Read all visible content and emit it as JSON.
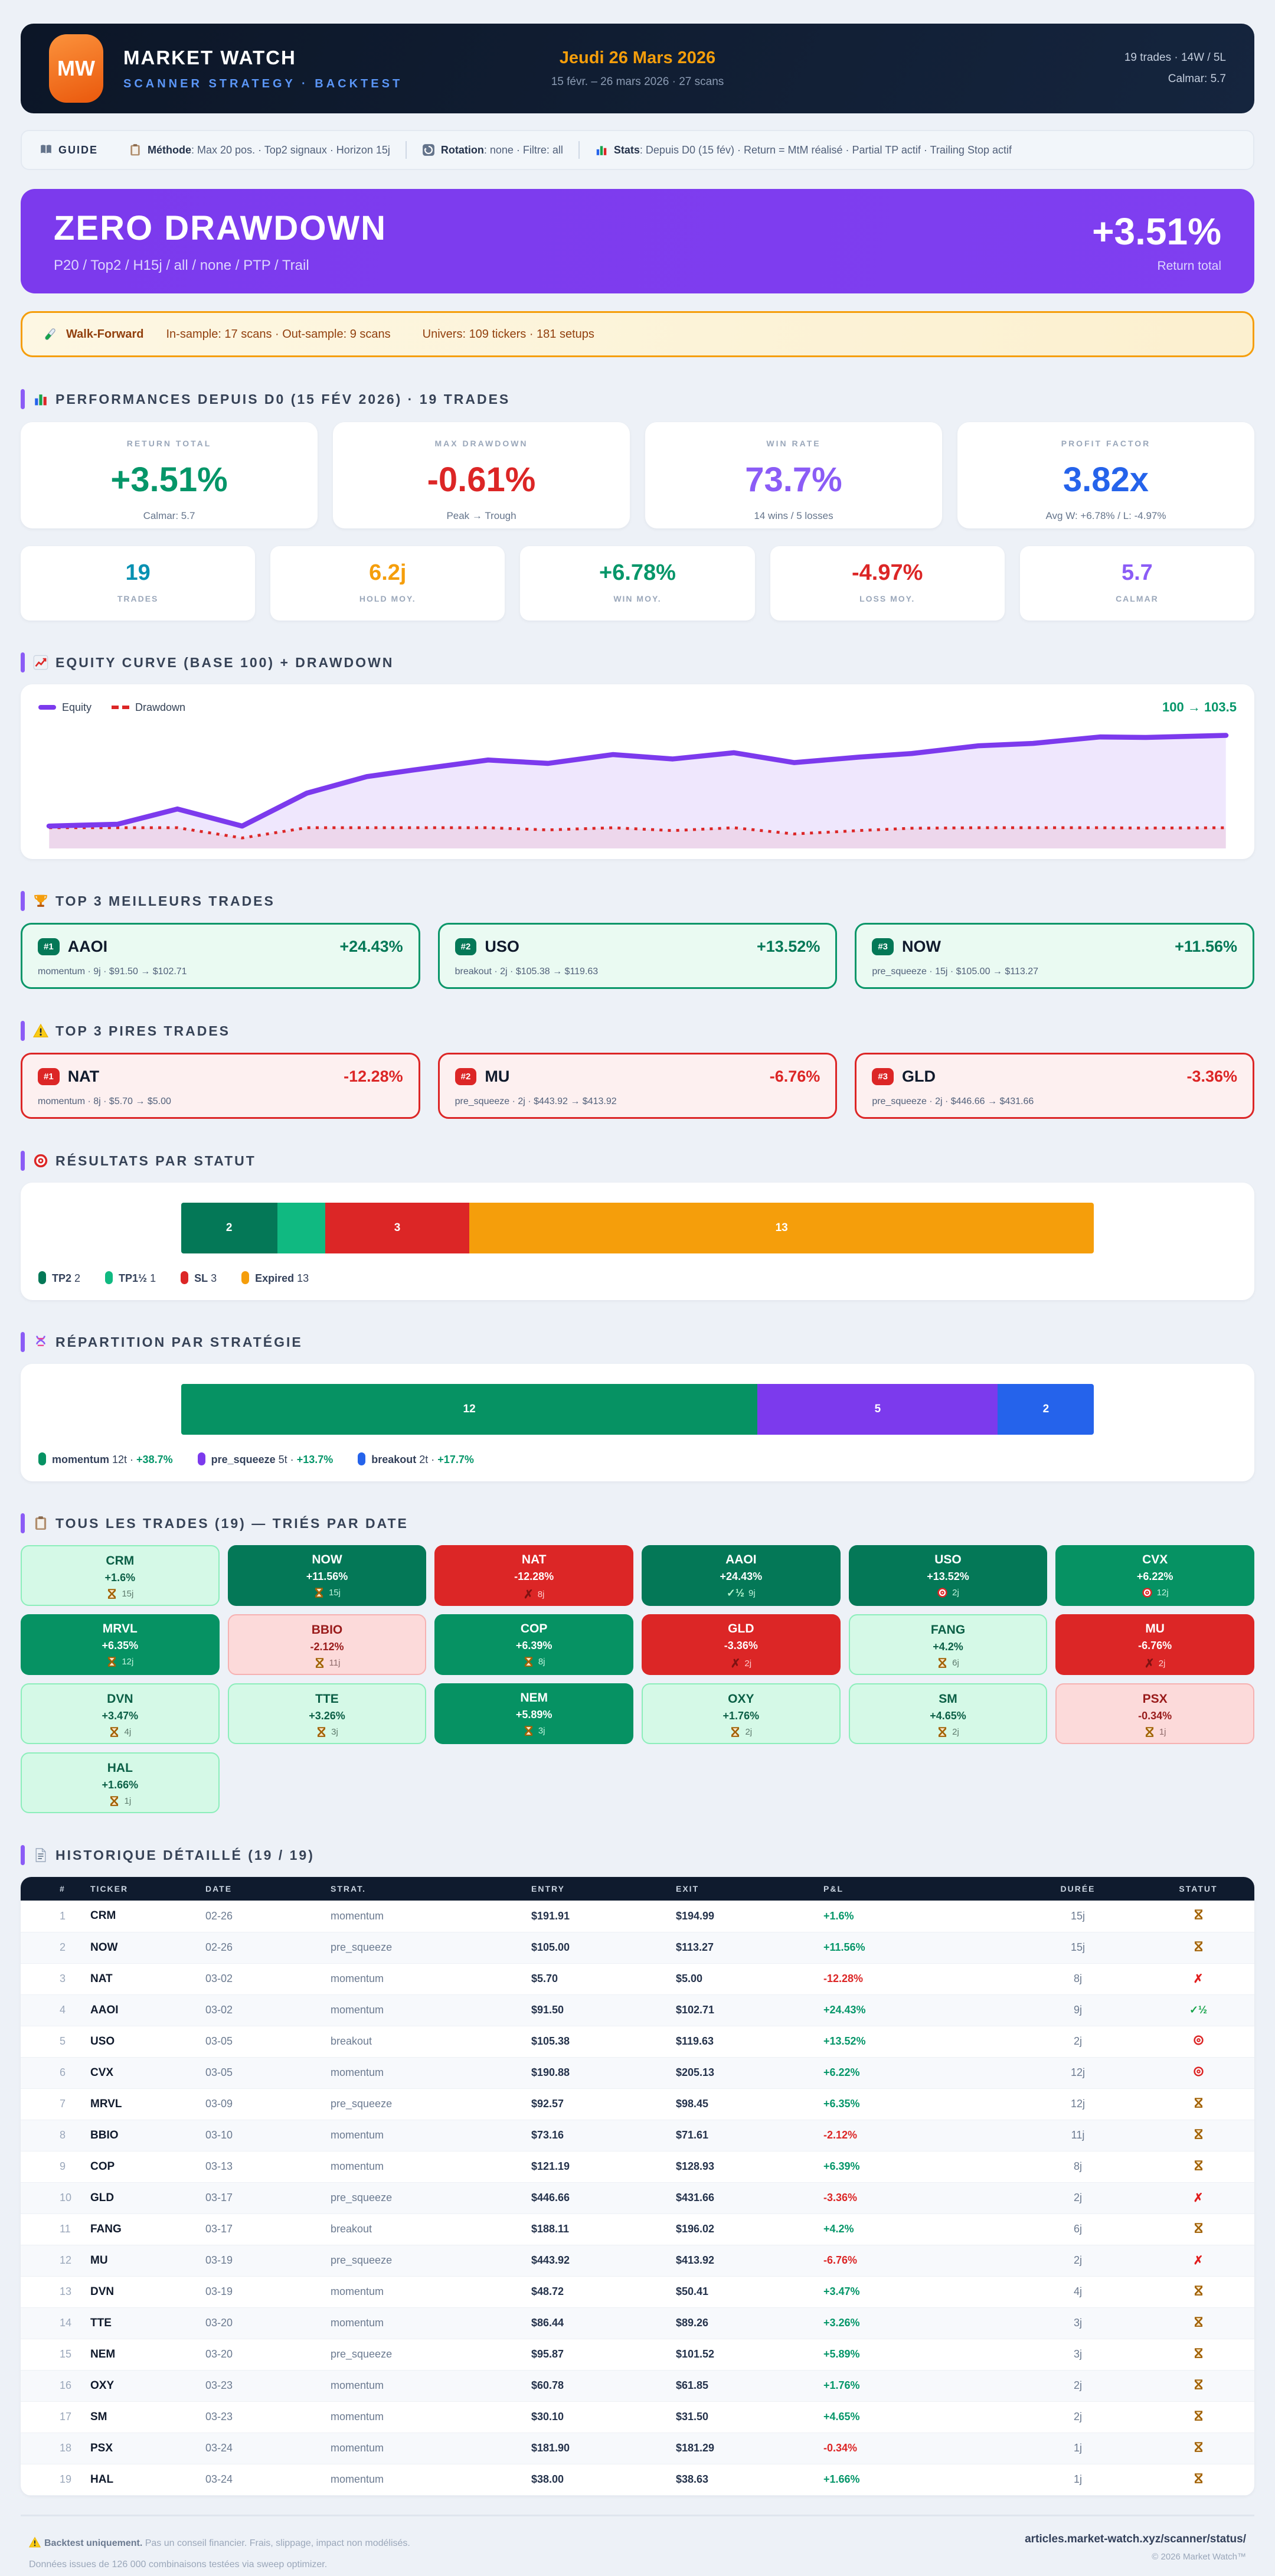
{
  "colors": {
    "green": "#059669",
    "dark_green": "#047857",
    "light_green": "#10b981",
    "red": "#dc2626",
    "purple": "#8b5cf6",
    "violet": "#7c3aed",
    "blue": "#2563eb",
    "orange": "#f59e0b",
    "cyan": "#0891b2"
  },
  "header": {
    "logo": "MW",
    "title": "MARKET WATCH",
    "subtitle": "SCANNER STRATEGY · BACKTEST",
    "date_label": "Jeudi 26 Mars 2026",
    "range_label": "15 févr. – 26 mars 2026 · 27 scans",
    "stats_line1": "19 trades · 14W / 5L",
    "stats_line2": "Calmar: 5.7"
  },
  "guide": {
    "label": "GUIDE",
    "items": [
      {
        "icon": "clipboard-icon",
        "label": "Méthode",
        "text": ": Max 20 pos. · Top2 signaux · Horizon 15j"
      },
      {
        "icon": "rotation-icon",
        "label": "Rotation",
        "text": ": none · Filtre: all"
      },
      {
        "icon": "stats-icon",
        "label": "Stats",
        "text": ": Depuis D0 (15 fév) · Return = MtM réalisé · Partial TP actif · Trailing Stop actif"
      }
    ]
  },
  "banner": {
    "title": "ZERO DRAWDOWN",
    "subtitle": "P20 / Top2 / H15j / all / none / PTP / Trail",
    "value": "+3.51%",
    "value_label": "Return total"
  },
  "walkforward": {
    "label": "Walk-Forward",
    "samples": "In-sample: 17 scans · Out-sample: 9 scans",
    "universe": "Univers: 109 tickers · 181 setups"
  },
  "sections": {
    "performances": "PERFORMANCES DEPUIS D0 (15 FÉV 2026) · 19 TRADES",
    "equity": "EQUITY CURVE (BASE 100) + DRAWDOWN",
    "best": "TOP 3 MEILLEURS TRADES",
    "worst": "TOP 3 PIRES TRADES",
    "statut": "RÉSULTATS PAR STATUT",
    "strategie": "RÉPARTITION PAR STRATÉGIE",
    "trades": "TOUS LES TRADES (19) — TRIÉS PAR DATE",
    "history": "HISTORIQUE DÉTAILLÉ (19 / 19)"
  },
  "kpis": [
    {
      "id": "return-total",
      "label": "RETURN TOTAL",
      "value": "+3.51%",
      "sub": "Calmar: 5.7",
      "color": "#059669"
    },
    {
      "id": "max-drawdown",
      "label": "MAX DRAWDOWN",
      "value": "-0.61%",
      "sub": "Peak → Trough",
      "color": "#dc2626"
    },
    {
      "id": "win-rate",
      "label": "WIN RATE",
      "value": "73.7%",
      "sub": "14 wins / 5 losses",
      "color": "#8b5cf6"
    },
    {
      "id": "profit-factor",
      "label": "PROFIT FACTOR",
      "value": "3.82x",
      "sub": "Avg W: +6.78% / L: -4.97%",
      "color": "#2563eb"
    }
  ],
  "minis": [
    {
      "id": "trades",
      "value": "19",
      "label": "TRADES",
      "color": "#0891b2"
    },
    {
      "id": "hold",
      "value": "6.2j",
      "label": "HOLD MOY.",
      "color": "#f59e0b"
    },
    {
      "id": "win",
      "value": "+6.78%",
      "label": "WIN MOY.",
      "color": "#059669"
    },
    {
      "id": "loss",
      "value": "-4.97%",
      "label": "LOSS MOY.",
      "color": "#dc2626"
    },
    {
      "id": "calmar",
      "value": "5.7",
      "label": "CALMAR",
      "color": "#8b5cf6"
    }
  ],
  "chart_data": {
    "type": "area",
    "title": "EQUITY CURVE (BASE 100) + DRAWDOWN",
    "legend": [
      "Equity",
      "Drawdown"
    ],
    "end_label": "100 → 103.5",
    "base": 100,
    "ylim": [
      99.8,
      103.6
    ],
    "x": [
      0,
      5.8,
      10.9,
      16.4,
      21.9,
      27.0,
      30.9,
      37.3,
      42.4,
      47.9,
      53.0,
      58.2,
      63.3,
      68.8,
      73.3,
      79.0,
      83.6,
      89.3,
      93.2,
      100
    ],
    "equity": [
      100,
      100.07,
      100.66,
      100.0,
      101.27,
      101.91,
      102.16,
      102.55,
      102.42,
      102.76,
      102.59,
      102.83,
      102.45,
      102.66,
      102.8,
      103.1,
      103.19,
      103.44,
      103.42,
      103.5
    ],
    "drawdown": [
      0,
      0,
      0,
      -0.61,
      0,
      0,
      0,
      0,
      -0.13,
      0,
      -0.17,
      0,
      -0.37,
      -0.17,
      -0.03,
      0,
      0,
      0,
      -0.02,
      0
    ],
    "equity_color": "#7c3aed",
    "drawdown_color": "#dc2626"
  },
  "best_trades": [
    {
      "rank": "#1",
      "ticker": "AAOI",
      "value": "+24.43%",
      "meta": "momentum · 9j · $91.50 → $102.71"
    },
    {
      "rank": "#2",
      "ticker": "USO",
      "value": "+13.52%",
      "meta": "breakout · 2j · $105.38 → $119.63"
    },
    {
      "rank": "#3",
      "ticker": "NOW",
      "value": "+11.56%",
      "meta": "pre_squeeze · 15j · $105.00 → $113.27"
    }
  ],
  "worst_trades": [
    {
      "rank": "#1",
      "ticker": "NAT",
      "value": "-12.28%",
      "meta": "momentum · 8j · $5.70 → $5.00"
    },
    {
      "rank": "#2",
      "ticker": "MU",
      "value": "-6.76%",
      "meta": "pre_squeeze · 2j · $443.92 → $413.92"
    },
    {
      "rank": "#3",
      "ticker": "GLD",
      "value": "-3.36%",
      "meta": "pre_squeeze · 2j · $446.66 → $431.66"
    }
  ],
  "status_chart": {
    "type": "bar",
    "total": 19,
    "segments": [
      {
        "label": "TP2",
        "count": 2,
        "color": "#047857"
      },
      {
        "label": "TP1½",
        "count": 1,
        "color": "#10b981"
      },
      {
        "label": "SL",
        "count": 3,
        "color": "#dc2626"
      },
      {
        "label": "Expired",
        "count": 13,
        "color": "#f59e0b"
      }
    ]
  },
  "strategy_chart": {
    "type": "bar",
    "total": 19,
    "segments": [
      {
        "label": "momentum",
        "count": 12,
        "count_label": "12t",
        "pct": "+38.7%",
        "color": "#069263"
      },
      {
        "label": "pre_squeeze",
        "count": 5,
        "count_label": "5t",
        "pct": "+13.7%",
        "color": "#7c3aed"
      },
      {
        "label": "breakout",
        "count": 2,
        "count_label": "2t",
        "pct": "+17.7%",
        "color": "#2563eb"
      }
    ]
  },
  "status_icons": {
    "expired": "hourglass",
    "sl": "cross",
    "tp2": "target",
    "tp15": "check-half"
  },
  "tiles": [
    {
      "ticker": "CRM",
      "pnl": "+1.6%",
      "status": "expired",
      "days": "15j",
      "variant": "g1"
    },
    {
      "ticker": "NOW",
      "pnl": "+11.56%",
      "status": "expired",
      "days": "15j",
      "variant": "g3"
    },
    {
      "ticker": "NAT",
      "pnl": "-12.28%",
      "status": "sl",
      "days": "8j",
      "variant": "r2"
    },
    {
      "ticker": "AAOI",
      "pnl": "+24.43%",
      "status": "tp15",
      "days": "9j",
      "variant": "g3"
    },
    {
      "ticker": "USO",
      "pnl": "+13.52%",
      "status": "tp2",
      "days": "2j",
      "variant": "g3"
    },
    {
      "ticker": "CVX",
      "pnl": "+6.22%",
      "status": "tp2",
      "days": "12j",
      "variant": "g2"
    },
    {
      "ticker": "MRVL",
      "pnl": "+6.35%",
      "status": "expired",
      "days": "12j",
      "variant": "g2"
    },
    {
      "ticker": "BBIO",
      "pnl": "-2.12%",
      "status": "expired",
      "days": "11j",
      "variant": "r1"
    },
    {
      "ticker": "COP",
      "pnl": "+6.39%",
      "status": "expired",
      "days": "8j",
      "variant": "g2"
    },
    {
      "ticker": "GLD",
      "pnl": "-3.36%",
      "status": "sl",
      "days": "2j",
      "variant": "r2"
    },
    {
      "ticker": "FANG",
      "pnl": "+4.2%",
      "status": "expired",
      "days": "6j",
      "variant": "g1"
    },
    {
      "ticker": "MU",
      "pnl": "-6.76%",
      "status": "sl",
      "days": "2j",
      "variant": "r2"
    },
    {
      "ticker": "DVN",
      "pnl": "+3.47%",
      "status": "expired",
      "days": "4j",
      "variant": "g1"
    },
    {
      "ticker": "TTE",
      "pnl": "+3.26%",
      "status": "expired",
      "days": "3j",
      "variant": "g1"
    },
    {
      "ticker": "NEM",
      "pnl": "+5.89%",
      "status": "expired",
      "days": "3j",
      "variant": "g2"
    },
    {
      "ticker": "OXY",
      "pnl": "+1.76%",
      "status": "expired",
      "days": "2j",
      "variant": "g1"
    },
    {
      "ticker": "SM",
      "pnl": "+4.65%",
      "status": "expired",
      "days": "2j",
      "variant": "g1"
    },
    {
      "ticker": "PSX",
      "pnl": "-0.34%",
      "status": "expired",
      "days": "1j",
      "variant": "r1"
    },
    {
      "ticker": "HAL",
      "pnl": "+1.66%",
      "status": "expired",
      "days": "1j",
      "variant": "g1"
    }
  ],
  "table": {
    "columns": [
      "#",
      "TICKER",
      "DATE",
      "STRAT.",
      "ENTRY",
      "EXIT",
      "P&L",
      "DURÉE",
      "STATUT"
    ],
    "rows": [
      {
        "n": "1",
        "ticker": "CRM",
        "date": "02-26",
        "strat": "momentum",
        "entry": "$191.91",
        "exit": "$194.99",
        "pnl": "+1.6%",
        "days": "15j",
        "status": "expired"
      },
      {
        "n": "2",
        "ticker": "NOW",
        "date": "02-26",
        "strat": "pre_squeeze",
        "entry": "$105.00",
        "exit": "$113.27",
        "pnl": "+11.56%",
        "days": "15j",
        "status": "expired"
      },
      {
        "n": "3",
        "ticker": "NAT",
        "date": "03-02",
        "strat": "momentum",
        "entry": "$5.70",
        "exit": "$5.00",
        "pnl": "-12.28%",
        "days": "8j",
        "status": "sl"
      },
      {
        "n": "4",
        "ticker": "AAOI",
        "date": "03-02",
        "strat": "momentum",
        "entry": "$91.50",
        "exit": "$102.71",
        "pnl": "+24.43%",
        "days": "9j",
        "status": "tp15"
      },
      {
        "n": "5",
        "ticker": "USO",
        "date": "03-05",
        "strat": "breakout",
        "entry": "$105.38",
        "exit": "$119.63",
        "pnl": "+13.52%",
        "days": "2j",
        "status": "tp2"
      },
      {
        "n": "6",
        "ticker": "CVX",
        "date": "03-05",
        "strat": "momentum",
        "entry": "$190.88",
        "exit": "$205.13",
        "pnl": "+6.22%",
        "days": "12j",
        "status": "tp2"
      },
      {
        "n": "7",
        "ticker": "MRVL",
        "date": "03-09",
        "strat": "pre_squeeze",
        "entry": "$92.57",
        "exit": "$98.45",
        "pnl": "+6.35%",
        "days": "12j",
        "status": "expired"
      },
      {
        "n": "8",
        "ticker": "BBIO",
        "date": "03-10",
        "strat": "momentum",
        "entry": "$73.16",
        "exit": "$71.61",
        "pnl": "-2.12%",
        "days": "11j",
        "status": "expired"
      },
      {
        "n": "9",
        "ticker": "COP",
        "date": "03-13",
        "strat": "momentum",
        "entry": "$121.19",
        "exit": "$128.93",
        "pnl": "+6.39%",
        "days": "8j",
        "status": "expired"
      },
      {
        "n": "10",
        "ticker": "GLD",
        "date": "03-17",
        "strat": "pre_squeeze",
        "entry": "$446.66",
        "exit": "$431.66",
        "pnl": "-3.36%",
        "days": "2j",
        "status": "sl"
      },
      {
        "n": "11",
        "ticker": "FANG",
        "date": "03-17",
        "strat": "breakout",
        "entry": "$188.11",
        "exit": "$196.02",
        "pnl": "+4.2%",
        "days": "6j",
        "status": "expired"
      },
      {
        "n": "12",
        "ticker": "MU",
        "date": "03-19",
        "strat": "pre_squeeze",
        "entry": "$443.92",
        "exit": "$413.92",
        "pnl": "-6.76%",
        "days": "2j",
        "status": "sl"
      },
      {
        "n": "13",
        "ticker": "DVN",
        "date": "03-19",
        "strat": "momentum",
        "entry": "$48.72",
        "exit": "$50.41",
        "pnl": "+3.47%",
        "days": "4j",
        "status": "expired"
      },
      {
        "n": "14",
        "ticker": "TTE",
        "date": "03-20",
        "strat": "momentum",
        "entry": "$86.44",
        "exit": "$89.26",
        "pnl": "+3.26%",
        "days": "3j",
        "status": "expired"
      },
      {
        "n": "15",
        "ticker": "NEM",
        "date": "03-20",
        "strat": "pre_squeeze",
        "entry": "$95.87",
        "exit": "$101.52",
        "pnl": "+5.89%",
        "days": "3j",
        "status": "expired"
      },
      {
        "n": "16",
        "ticker": "OXY",
        "date": "03-23",
        "strat": "momentum",
        "entry": "$60.78",
        "exit": "$61.85",
        "pnl": "+1.76%",
        "days": "2j",
        "status": "expired"
      },
      {
        "n": "17",
        "ticker": "SM",
        "date": "03-23",
        "strat": "momentum",
        "entry": "$30.10",
        "exit": "$31.50",
        "pnl": "+4.65%",
        "days": "2j",
        "status": "expired"
      },
      {
        "n": "18",
        "ticker": "PSX",
        "date": "03-24",
        "strat": "momentum",
        "entry": "$181.90",
        "exit": "$181.29",
        "pnl": "-0.34%",
        "days": "1j",
        "status": "expired"
      },
      {
        "n": "19",
        "ticker": "HAL",
        "date": "03-24",
        "strat": "momentum",
        "entry": "$38.00",
        "exit": "$38.63",
        "pnl": "+1.66%",
        "days": "1j",
        "status": "expired"
      }
    ]
  },
  "footer": {
    "disclaimer_bold": "Backtest uniquement.",
    "disclaimer": "Pas un conseil financier. Frais, slippage, impact non modélisés.",
    "data_note": "Données issues de 126 000 combinaisons testées via sweep optimizer.",
    "url": "articles.market-watch.xyz/scanner/status/",
    "copyright": "© 2026 Market Watch™"
  }
}
